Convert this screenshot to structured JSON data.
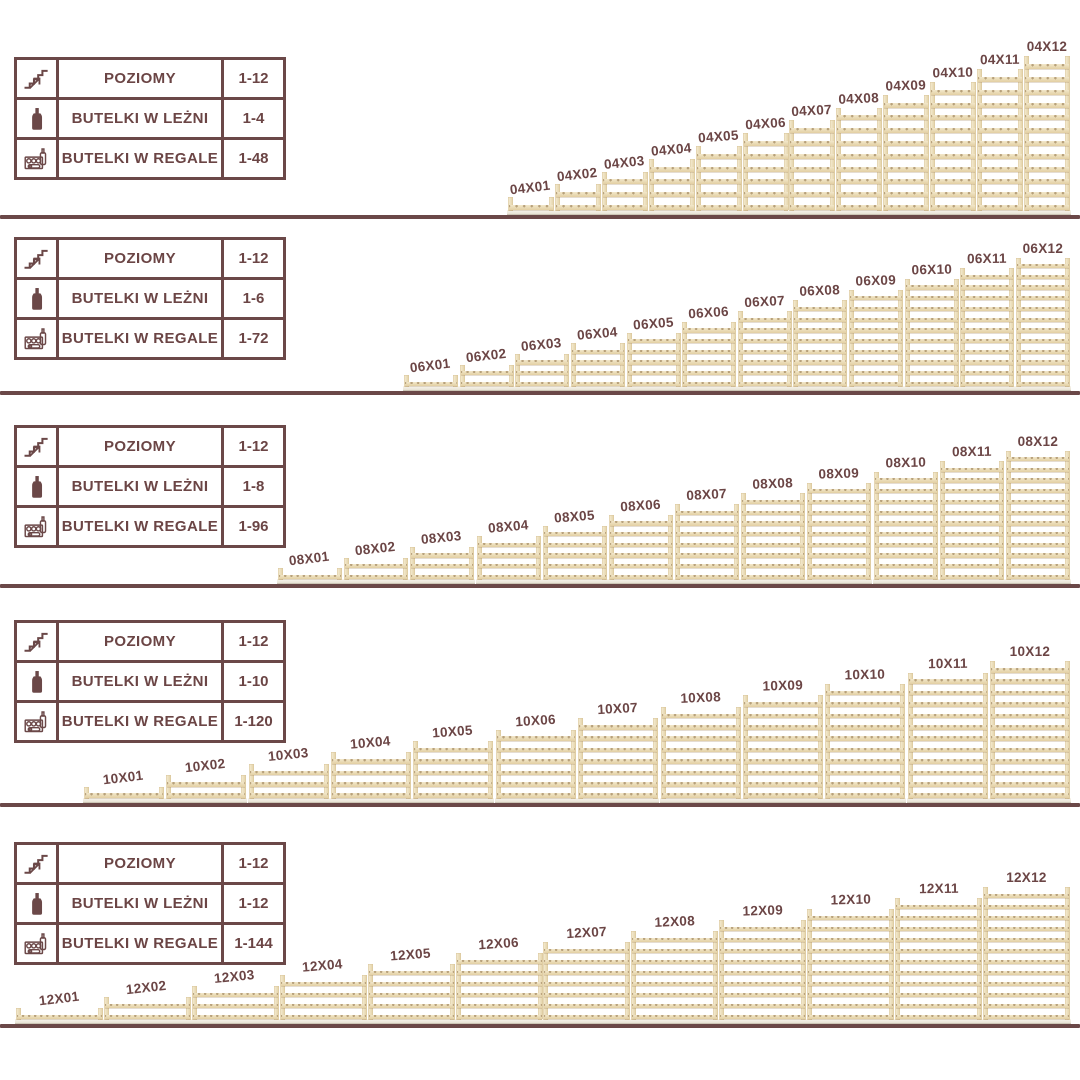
{
  "accent_color": "#6b4848",
  "wood_color": "#eddfbc",
  "sections": [
    {
      "id": "04-series",
      "bottles_per_level": 4,
      "table": {
        "rows": [
          {
            "icon": "stairs-growth-icon",
            "label": "POZIOMY",
            "value": "1-12"
          },
          {
            "icon": "wine-bottle-icon",
            "label": "BUTELKI W LEŻNI",
            "value": "1-4"
          },
          {
            "icon": "bottle-crate-icon",
            "label": "BUTELKI W REGALE",
            "value": "1-48"
          }
        ]
      },
      "racks": [
        {
          "label": "04X01",
          "levels": 1
        },
        {
          "label": "04X02",
          "levels": 2
        },
        {
          "label": "04X03",
          "levels": 3
        },
        {
          "label": "04X04",
          "levels": 4
        },
        {
          "label": "04X05",
          "levels": 5
        },
        {
          "label": "04X06",
          "levels": 6
        },
        {
          "label": "04X07",
          "levels": 7
        },
        {
          "label": "04X08",
          "levels": 8
        },
        {
          "label": "04X09",
          "levels": 9
        },
        {
          "label": "04X10",
          "levels": 10
        },
        {
          "label": "04X11",
          "levels": 11
        },
        {
          "label": "04X12",
          "levels": 12
        }
      ]
    },
    {
      "id": "06-series",
      "bottles_per_level": 6,
      "table": {
        "rows": [
          {
            "icon": "stairs-growth-icon",
            "label": "POZIOMY",
            "value": "1-12"
          },
          {
            "icon": "wine-bottle-icon",
            "label": "BUTELKI W LEŻNI",
            "value": "1-6"
          },
          {
            "icon": "bottle-crate-icon",
            "label": "BUTELKI W REGALE",
            "value": "1-72"
          }
        ]
      },
      "racks": [
        {
          "label": "06X01",
          "levels": 1
        },
        {
          "label": "06X02",
          "levels": 2
        },
        {
          "label": "06X03",
          "levels": 3
        },
        {
          "label": "06X04",
          "levels": 4
        },
        {
          "label": "06X05",
          "levels": 5
        },
        {
          "label": "06X06",
          "levels": 6
        },
        {
          "label": "06X07",
          "levels": 7
        },
        {
          "label": "06X08",
          "levels": 8
        },
        {
          "label": "06X09",
          "levels": 9
        },
        {
          "label": "06X10",
          "levels": 10
        },
        {
          "label": "06X11",
          "levels": 11
        },
        {
          "label": "06X12",
          "levels": 12
        }
      ]
    },
    {
      "id": "08-series",
      "bottles_per_level": 8,
      "table": {
        "rows": [
          {
            "icon": "stairs-growth-icon",
            "label": "POZIOMY",
            "value": "1-12"
          },
          {
            "icon": "wine-bottle-icon",
            "label": "BUTELKI W LEŻNI",
            "value": "1-8"
          },
          {
            "icon": "bottle-crate-icon",
            "label": "BUTELKI W REGALE",
            "value": "1-96"
          }
        ]
      },
      "racks": [
        {
          "label": "08X01",
          "levels": 1
        },
        {
          "label": "08X02",
          "levels": 2
        },
        {
          "label": "08X03",
          "levels": 3
        },
        {
          "label": "08X04",
          "levels": 4
        },
        {
          "label": "08X05",
          "levels": 5
        },
        {
          "label": "08X06",
          "levels": 6
        },
        {
          "label": "08X07",
          "levels": 7
        },
        {
          "label": "08X08",
          "levels": 8
        },
        {
          "label": "08X09",
          "levels": 9
        },
        {
          "label": "08X10",
          "levels": 10
        },
        {
          "label": "08X11",
          "levels": 11
        },
        {
          "label": "08X12",
          "levels": 12
        }
      ]
    },
    {
      "id": "10-series",
      "bottles_per_level": 10,
      "table": {
        "rows": [
          {
            "icon": "stairs-growth-icon",
            "label": "POZIOMY",
            "value": "1-12"
          },
          {
            "icon": "wine-bottle-icon",
            "label": "BUTELKI W LEŻNI",
            "value": "1-10"
          },
          {
            "icon": "bottle-crate-icon",
            "label": "BUTELKI W REGALE",
            "value": "1-120"
          }
        ]
      },
      "racks": [
        {
          "label": "10X01",
          "levels": 1
        },
        {
          "label": "10X02",
          "levels": 2
        },
        {
          "label": "10X03",
          "levels": 3
        },
        {
          "label": "10X04",
          "levels": 4
        },
        {
          "label": "10X05",
          "levels": 5
        },
        {
          "label": "10X06",
          "levels": 6
        },
        {
          "label": "10X07",
          "levels": 7
        },
        {
          "label": "10X08",
          "levels": 8
        },
        {
          "label": "10X09",
          "levels": 9
        },
        {
          "label": "10X10",
          "levels": 10
        },
        {
          "label": "10X11",
          "levels": 11
        },
        {
          "label": "10X12",
          "levels": 12
        }
      ]
    },
    {
      "id": "12-series",
      "bottles_per_level": 12,
      "table": {
        "rows": [
          {
            "icon": "stairs-growth-icon",
            "label": "POZIOMY",
            "value": "1-12"
          },
          {
            "icon": "wine-bottle-icon",
            "label": "BUTELKI W LEŻNI",
            "value": "1-12"
          },
          {
            "icon": "bottle-crate-icon",
            "label": "BUTELKI W REGALE",
            "value": "1-144"
          }
        ]
      },
      "racks": [
        {
          "label": "12X01",
          "levels": 1
        },
        {
          "label": "12X02",
          "levels": 2
        },
        {
          "label": "12X03",
          "levels": 3
        },
        {
          "label": "12X04",
          "levels": 4
        },
        {
          "label": "12X05",
          "levels": 5
        },
        {
          "label": "12X06",
          "levels": 6
        },
        {
          "label": "12X07",
          "levels": 7
        },
        {
          "label": "12X08",
          "levels": 8
        },
        {
          "label": "12X09",
          "levels": 9
        },
        {
          "label": "12X10",
          "levels": 10
        },
        {
          "label": "12X11",
          "levels": 11
        },
        {
          "label": "12X12",
          "levels": 12
        }
      ]
    }
  ]
}
